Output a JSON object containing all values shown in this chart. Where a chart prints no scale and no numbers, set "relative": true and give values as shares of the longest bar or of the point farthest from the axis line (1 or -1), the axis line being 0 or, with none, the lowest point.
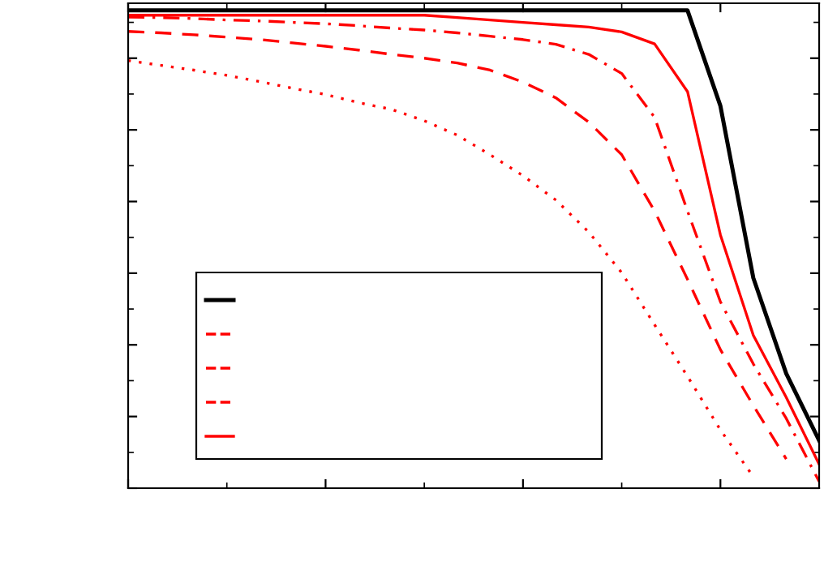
{
  "chart_data": {
    "type": "line",
    "relative": true,
    "tick_labels": false,
    "grid": false,
    "marker": "none",
    "categories": [
      null,
      null,
      null,
      null,
      null,
      null,
      null,
      null,
      null,
      null,
      null,
      null,
      null,
      null,
      null,
      null,
      null,
      null,
      null,
      null,
      null,
      null
    ],
    "series": [
      {
        "color": "#000000",
        "line_style": "solid",
        "values": [
          1.0,
          1.0,
          1.0,
          1.0,
          1.0,
          1.0,
          1.0,
          1.0,
          1.0,
          1.0,
          1.0,
          1.0,
          1.0,
          1.0,
          1.0,
          1.0,
          1.0,
          1.0,
          0.8,
          0.44,
          0.24,
          0.1
        ]
      },
      {
        "color": "#ff0000",
        "line_style": "dotted",
        "values": [
          0.895,
          0.885,
          0.875,
          0.864,
          0.851,
          0.837,
          0.824,
          0.807,
          0.793,
          0.769,
          0.739,
          0.698,
          0.654,
          0.603,
          0.536,
          0.451,
          0.342,
          0.234,
          0.122,
          0.024,
          null,
          null
        ]
      },
      {
        "color": "#ff0000",
        "line_style": "dashed",
        "values": [
          0.956,
          0.953,
          0.949,
          0.944,
          0.939,
          0.932,
          0.925,
          0.917,
          0.908,
          0.9,
          0.89,
          0.875,
          0.85,
          0.817,
          0.766,
          0.698,
          0.58,
          0.437,
          0.29,
          0.173,
          0.061,
          null
        ]
      },
      {
        "color": "#ff0000",
        "line_style": "dashdot",
        "values": [
          0.986,
          0.985,
          0.983,
          0.98,
          0.978,
          0.975,
          0.972,
          0.968,
          0.963,
          0.959,
          0.953,
          0.946,
          0.939,
          0.929,
          0.908,
          0.868,
          0.776,
          0.58,
          0.39,
          0.26,
          0.146,
          0.014
        ]
      },
      {
        "color": "#ff0000",
        "line_style": "solid",
        "values": [
          0.99,
          0.99,
          0.99,
          0.99,
          0.99,
          0.99,
          0.99,
          0.99,
          0.99,
          0.99,
          0.985,
          0.98,
          0.975,
          0.97,
          0.965,
          0.955,
          0.93,
          0.83,
          0.53,
          0.32,
          0.19,
          0.05
        ]
      }
    ]
  }
}
